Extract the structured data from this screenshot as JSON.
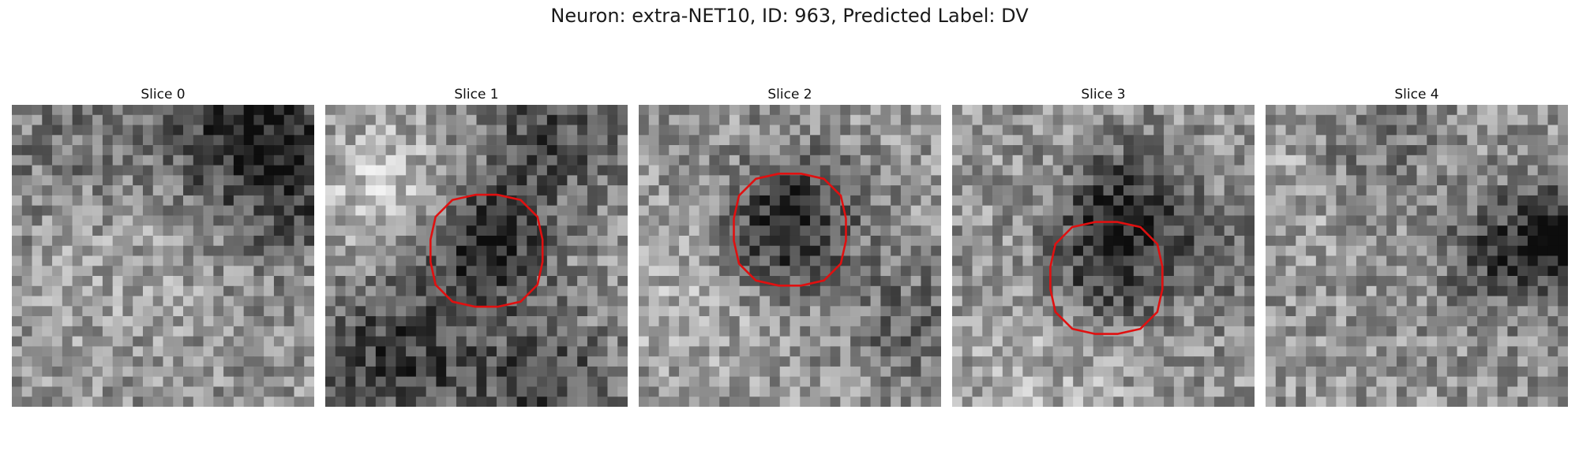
{
  "figure": {
    "title": "Neuron: extra-NET10, ID: 963, Predicted Label: DV",
    "outline_color": "#e01010"
  },
  "panels": [
    {
      "title": "Slice 0",
      "has_roi": false,
      "seed": 11,
      "theme": "slice0"
    },
    {
      "title": "Slice 1",
      "has_roi": true,
      "seed": 23,
      "theme": "slice1"
    },
    {
      "title": "Slice 2",
      "has_roi": true,
      "seed": 37,
      "theme": "slice2"
    },
    {
      "title": "Slice 3",
      "has_roi": true,
      "seed": 41,
      "theme": "slice3"
    },
    {
      "title": "Slice 4",
      "has_roi": false,
      "seed": 59,
      "theme": "slice4"
    }
  ]
}
